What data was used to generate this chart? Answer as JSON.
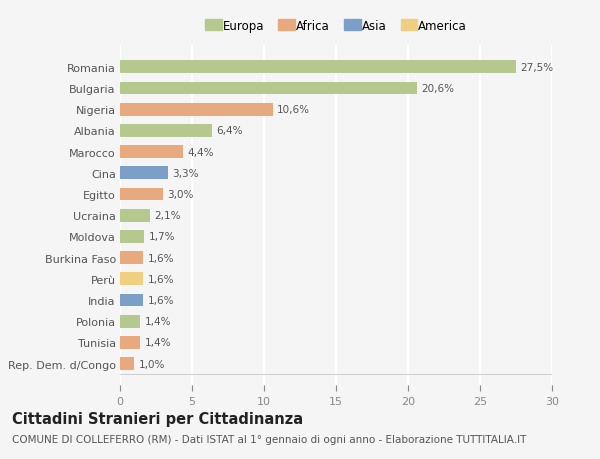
{
  "countries": [
    "Romania",
    "Bulgaria",
    "Nigeria",
    "Albania",
    "Marocco",
    "Cina",
    "Egitto",
    "Ucraina",
    "Moldova",
    "Burkina Faso",
    "Perù",
    "India",
    "Polonia",
    "Tunisia",
    "Rep. Dem. d/Congo"
  ],
  "values": [
    27.5,
    20.6,
    10.6,
    6.4,
    4.4,
    3.3,
    3.0,
    2.1,
    1.7,
    1.6,
    1.6,
    1.6,
    1.4,
    1.4,
    1.0
  ],
  "labels": [
    "27,5%",
    "20,6%",
    "10,6%",
    "6,4%",
    "4,4%",
    "3,3%",
    "3,0%",
    "2,1%",
    "1,7%",
    "1,6%",
    "1,6%",
    "1,6%",
    "1,4%",
    "1,4%",
    "1,0%"
  ],
  "continents": [
    "Europa",
    "Europa",
    "Africa",
    "Europa",
    "Africa",
    "Asia",
    "Africa",
    "Europa",
    "Europa",
    "Africa",
    "America",
    "Asia",
    "Europa",
    "Africa",
    "Africa"
  ],
  "colors": {
    "Europa": "#b5c98e",
    "Africa": "#e8a97e",
    "Asia": "#7b9fc7",
    "America": "#f0d080"
  },
  "legend_order": [
    "Europa",
    "Africa",
    "Asia",
    "America"
  ],
  "legend_marker_sizes": [
    12,
    12,
    12,
    12
  ],
  "xlim": [
    0,
    30
  ],
  "xticks": [
    0,
    5,
    10,
    15,
    20,
    25,
    30
  ],
  "background_color": "#f5f5f5",
  "grid_color": "#ffffff",
  "title": "Cittadini Stranieri per Cittadinanza",
  "subtitle": "COMUNE DI COLLEFERRO (RM) - Dati ISTAT al 1° gennaio di ogni anno - Elaborazione TUTTITALIA.IT",
  "title_fontsize": 10.5,
  "subtitle_fontsize": 7.5,
  "bar_height": 0.6
}
